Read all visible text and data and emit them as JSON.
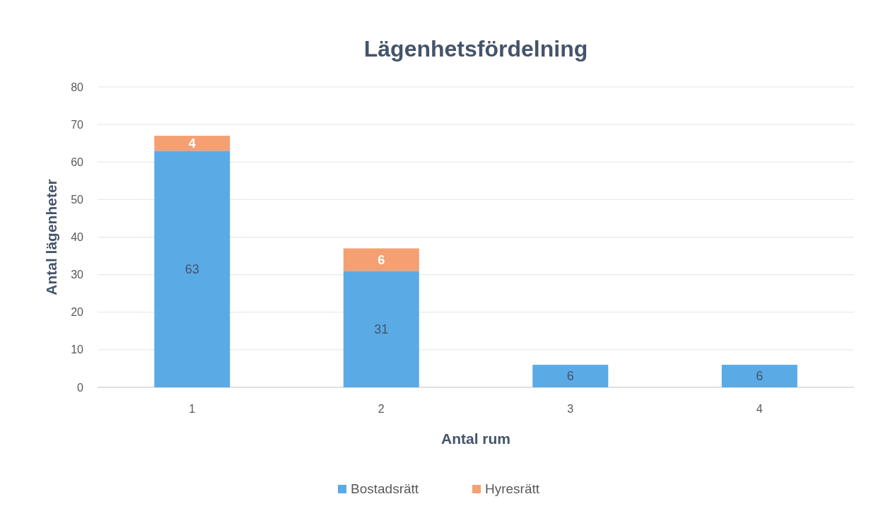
{
  "chart_data": {
    "type": "bar",
    "title": "Lägenhetsfördelning",
    "xlabel": "Antal rum",
    "ylabel": "Antal lägenheter",
    "categories": [
      "1",
      "2",
      "3",
      "4"
    ],
    "series": [
      {
        "name": "Bostadsrätt",
        "color": "#5aaae6",
        "values": [
          63,
          31,
          6,
          6
        ]
      },
      {
        "name": "Hyresrätt",
        "color": "#f5a073",
        "values": [
          4,
          6,
          null,
          null
        ]
      }
    ],
    "stacked": true,
    "ylim": [
      0,
      80
    ],
    "yticks": [
      0,
      10,
      20,
      30,
      40,
      50,
      60,
      70,
      80
    ],
    "grid": "y",
    "legend": "bottom",
    "data_labels": true
  }
}
